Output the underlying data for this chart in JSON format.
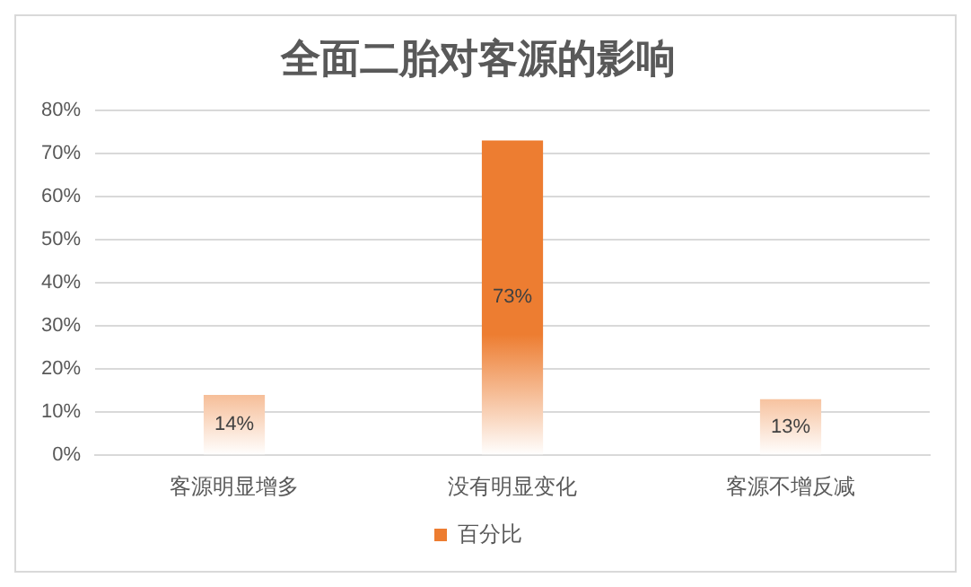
{
  "chart_data": {
    "type": "bar",
    "title": "全面二胎对客源的影响",
    "categories": [
      "客源明显增多",
      "没有明显变化",
      "客源不增反减"
    ],
    "series": [
      {
        "name": "百分比",
        "color": "#ed7d31",
        "values": [
          14,
          73,
          13
        ],
        "value_labels": [
          "14%",
          "73%",
          "13%"
        ]
      }
    ],
    "ylim": [
      0,
      80
    ],
    "yticks": [
      {
        "value": 0,
        "label": "0%"
      },
      {
        "value": 10,
        "label": "10%"
      },
      {
        "value": 20,
        "label": "20%"
      },
      {
        "value": 30,
        "label": "30%"
      },
      {
        "value": 40,
        "label": "40%"
      },
      {
        "value": 50,
        "label": "50%"
      },
      {
        "value": 60,
        "label": "60%"
      },
      {
        "value": 70,
        "label": "70%"
      },
      {
        "value": 80,
        "label": "80%"
      }
    ],
    "grid": "y",
    "legend": "bottom"
  }
}
